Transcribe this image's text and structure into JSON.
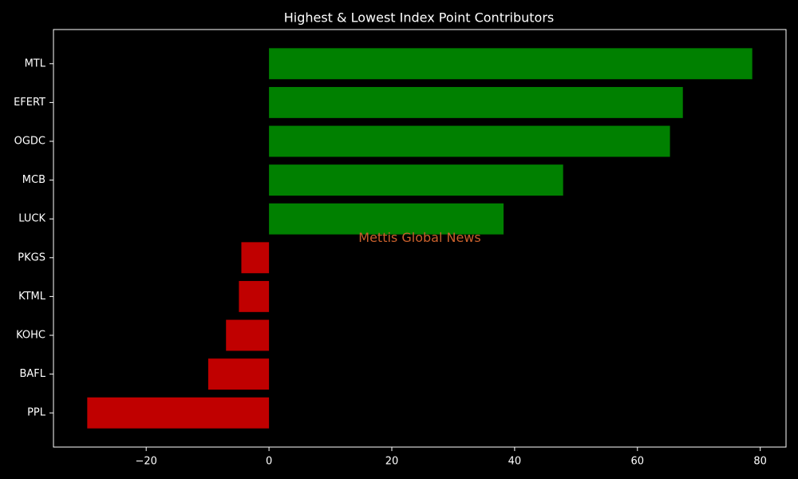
{
  "chart_data": {
    "type": "barh",
    "title": "Highest & Lowest Index Point Contributors",
    "watermark": "Mettis Global News",
    "categories": [
      "MTL",
      "EFERT",
      "OGDC",
      "MCB",
      "LUCK",
      "PKGS",
      "KTML",
      "KOHC",
      "BAFL",
      "PPL"
    ],
    "values": [
      78.7,
      67.4,
      65.3,
      47.9,
      38.2,
      -4.5,
      -4.9,
      -7.0,
      -9.9,
      -29.6
    ],
    "colors": [
      "#008000",
      "#008000",
      "#008000",
      "#008000",
      "#008000",
      "#c00000",
      "#c00000",
      "#c00000",
      "#c00000",
      "#c00000"
    ],
    "xlim": [
      -35.1,
      84.2
    ],
    "xticks": [
      {
        "value": -20,
        "label": "−20"
      },
      0,
      20,
      40,
      60,
      80
    ]
  }
}
